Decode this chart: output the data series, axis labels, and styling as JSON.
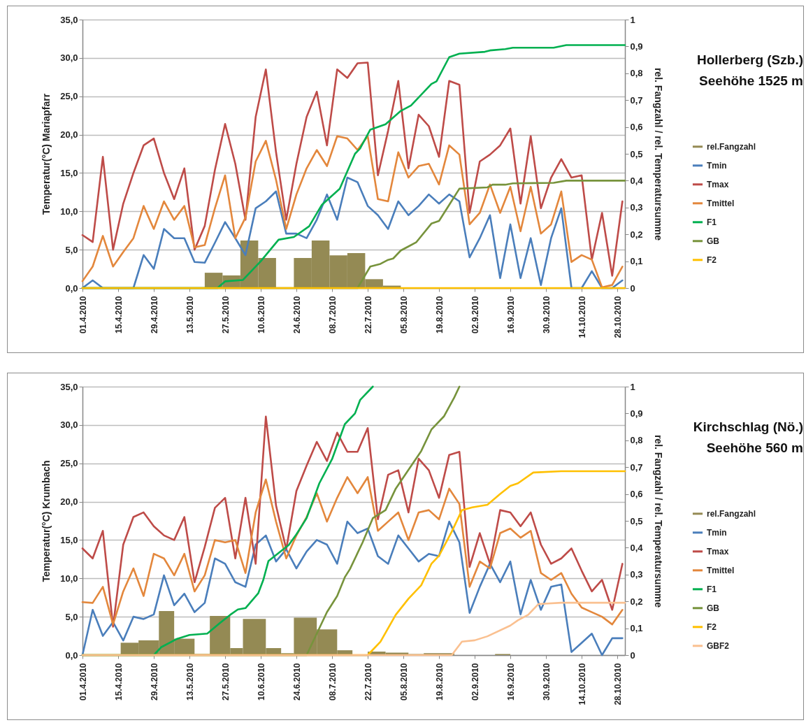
{
  "chart_data": [
    {
      "type": "line",
      "annotations": [
        "Hollerberg (Szb.)",
        "Seehöhe 1525 m"
      ],
      "ylabel": "Temperatur(°C)   Mariapfarr",
      "y2label": "rel. Fangzahl  /  rel. Temperatursumme",
      "grid": "y",
      "legend": "right",
      "y2ticks": [
        {
          "value": 0,
          "label": "0"
        },
        {
          "value": 0.1,
          "label": "0,1"
        },
        {
          "value": 0.2,
          "label": "0,2"
        },
        {
          "value": 0.3,
          "label": "0,3"
        },
        {
          "value": 0.4,
          "label": "0,4"
        },
        {
          "value": 0.5,
          "label": "0,5"
        },
        {
          "value": 0.6,
          "label": "0,6"
        },
        {
          "value": 0.7,
          "label": "0,7"
        },
        {
          "value": 0.8,
          "label": "0,8"
        },
        {
          "value": 0.9,
          "label": "0,9"
        },
        {
          "value": 1,
          "label": "1"
        }
      ],
      "xlim": [
        "2010-04-01",
        "2010-10-31"
      ],
      "xticks": [
        {
          "value": "2010-04-01",
          "label": "01.4.2010"
        },
        {
          "value": "2010-04-15",
          "label": "15.4.2010"
        },
        {
          "value": "2010-04-29",
          "label": "29.4.2010"
        },
        {
          "value": "2010-05-13",
          "label": "13.5.2010"
        },
        {
          "value": "2010-05-27",
          "label": "27.5.2010"
        },
        {
          "value": "2010-06-10",
          "label": "10.6.2010"
        },
        {
          "value": "2010-06-24",
          "label": "24.6.2010"
        },
        {
          "value": "2010-07-08",
          "label": "08.7.2010"
        },
        {
          "value": "2010-07-22",
          "label": "22.7.2010"
        },
        {
          "value": "2010-08-05",
          "label": "05.8.2010"
        },
        {
          "value": "2010-08-19",
          "label": "19.8.2010"
        },
        {
          "value": "2010-09-02",
          "label": "02.9.2010"
        },
        {
          "value": "2010-09-16",
          "label": "16.9.2010"
        },
        {
          "value": "2010-09-30",
          "label": "30.9.2010"
        },
        {
          "value": "2010-10-14",
          "label": "14.10.2010"
        },
        {
          "value": "2010-10-28",
          "label": "28.10.2010"
        }
      ],
      "ylim": [
        0,
        35
      ],
      "yticks": [
        {
          "value": 0,
          "label": "0,0"
        },
        {
          "value": 5,
          "label": "5,0"
        },
        {
          "value": 10,
          "label": "10,0"
        },
        {
          "value": 15,
          "label": "15,0"
        },
        {
          "value": 20,
          "label": "20,0"
        },
        {
          "value": 25,
          "label": "25,0"
        },
        {
          "value": 30,
          "label": "30,0"
        },
        {
          "value": 35,
          "label": "35,0"
        }
      ],
      "y2lim": [
        0,
        1
      ],
      "x": [
        "2010-04-01",
        "2010-04-05",
        "2010-04-09",
        "2010-04-13",
        "2010-04-17",
        "2010-04-21",
        "2010-04-25",
        "2010-04-29",
        "2010-05-03",
        "2010-05-07",
        "2010-05-11",
        "2010-05-15",
        "2010-05-19",
        "2010-05-23",
        "2010-05-27",
        "2010-05-31",
        "2010-06-04",
        "2010-06-08",
        "2010-06-12",
        "2010-06-16",
        "2010-06-20",
        "2010-06-24",
        "2010-06-28",
        "2010-07-02",
        "2010-07-06",
        "2010-07-10",
        "2010-07-14",
        "2010-07-18",
        "2010-07-22",
        "2010-07-26",
        "2010-07-30",
        "2010-08-03",
        "2010-08-07",
        "2010-08-11",
        "2010-08-15",
        "2010-08-19",
        "2010-08-23",
        "2010-08-27",
        "2010-08-31",
        "2010-09-04",
        "2010-09-08",
        "2010-09-12",
        "2010-09-16",
        "2010-09-20",
        "2010-09-24",
        "2010-09-28",
        "2010-10-02",
        "2010-10-06",
        "2010-10-10",
        "2010-10-14",
        "2010-10-18",
        "2010-10-22",
        "2010-10-26",
        "2010-10-30"
      ],
      "series": [
        {
          "name": "rel.Fangzahl",
          "type": "histogram",
          "axis": "y2",
          "color": "#948a54",
          "bins": [
            "2010-05-19",
            "2010-05-26",
            "2010-06-02",
            "2010-06-09",
            "2010-06-16",
            "2010-06-23",
            "2010-06-30",
            "2010-07-07",
            "2010-07-14",
            "2010-07-21",
            "2010-07-28",
            "2010-08-04"
          ],
          "values": [
            0.057,
            0.047,
            0.177,
            0.112,
            0,
            0.112,
            0.177,
            0.122,
            0.13,
            0.033,
            0.009
          ]
        },
        {
          "name": "Tmin",
          "color": "#4a7ebb",
          "values": [
            0,
            1,
            0,
            0,
            0,
            0,
            4.3,
            2.5,
            7.7,
            6.5,
            6.5,
            3.4,
            3.3,
            5.9,
            8.6,
            6.5,
            4.3,
            10.4,
            11.3,
            12.6,
            7.1,
            7.1,
            6.5,
            8.9,
            12.2,
            8.9,
            14.4,
            13.8,
            10.7,
            9.5,
            7.7,
            11.3,
            9.5,
            10.7,
            12.2,
            11,
            12.2,
            11.3,
            4,
            6.5,
            9.5,
            1.3,
            8.3,
            1.3,
            6.5,
            0.4,
            6.5,
            10.4,
            0,
            0,
            2.2,
            0,
            0,
            1
          ]
        },
        {
          "name": "Tmax",
          "color": "#be4b48",
          "values": [
            6.9,
            6,
            17.1,
            5,
            11,
            15,
            18.6,
            19.5,
            15,
            11.6,
            15.6,
            5,
            8.1,
            15.4,
            21.4,
            16.2,
            8.9,
            22.3,
            28.5,
            17.7,
            8.9,
            16.2,
            22.3,
            25.6,
            18.6,
            28.5,
            27.4,
            29.3,
            29.4,
            14.7,
            20.5,
            27,
            15.6,
            22.6,
            21.1,
            17.1,
            27,
            26.5,
            9.8,
            16.5,
            17.4,
            18.6,
            20.8,
            11,
            19.8,
            10.4,
            14.4,
            16.8,
            14.4,
            14.7,
            3.7,
            9.8,
            1.6,
            11.3
          ]
        },
        {
          "name": "Tmittel",
          "color": "#e3873c",
          "values": [
            0.9,
            2.8,
            6.8,
            2.8,
            4.7,
            6.5,
            10.7,
            7.7,
            11.3,
            8.9,
            10.7,
            5.3,
            5.6,
            10.4,
            14.7,
            6.5,
            9.2,
            16.5,
            19.2,
            14.1,
            7.7,
            12.2,
            15.6,
            18,
            15.9,
            19.8,
            19.5,
            18,
            19.8,
            11.6,
            11.3,
            17.7,
            14.4,
            15.9,
            16.2,
            13.5,
            18.6,
            17.4,
            8.3,
            9.8,
            13.5,
            9.8,
            13.2,
            7.4,
            13.2,
            7.1,
            8.3,
            12.6,
            3.4,
            4.3,
            3.7,
            0.1,
            0.4,
            2.8
          ]
        },
        {
          "name": "F1",
          "axis": "y2",
          "color": "#00b050",
          "x": [
            "2010-04-01",
            "2010-05-24",
            "2010-05-27",
            "2010-06-03",
            "2010-06-10",
            "2010-06-17",
            "2010-06-23",
            "2010-06-29",
            "2010-07-04",
            "2010-07-11",
            "2010-07-17",
            "2010-07-19",
            "2010-07-23",
            "2010-07-29",
            "2010-08-04",
            "2010-08-08",
            "2010-08-16",
            "2010-08-18",
            "2010-08-23",
            "2010-08-27",
            "2010-09-06",
            "2010-09-08",
            "2010-09-14",
            "2010-09-17",
            "2010-10-03",
            "2010-10-08",
            "2010-10-31"
          ],
          "values": [
            0,
            0,
            0.025,
            0.03,
            0.1,
            0.18,
            0.19,
            0.23,
            0.31,
            0.37,
            0.5,
            0.52,
            0.59,
            0.61,
            0.66,
            0.68,
            0.76,
            0.77,
            0.86,
            0.873,
            0.88,
            0.885,
            0.89,
            0.895,
            0.895,
            0.905,
            0.905
          ]
        },
        {
          "name": "GB",
          "axis": "y2",
          "color": "#77933c",
          "x": [
            "2010-04-01",
            "2010-07-18",
            "2010-07-23",
            "2010-07-27",
            "2010-07-30",
            "2010-08-01",
            "2010-08-04",
            "2010-08-07",
            "2010-08-10",
            "2010-08-16",
            "2010-08-19",
            "2010-08-23",
            "2010-08-27",
            "2010-09-07",
            "2010-09-09",
            "2010-09-14",
            "2010-09-17",
            "2010-10-03",
            "2010-10-08",
            "2010-10-31"
          ],
          "values": [
            0,
            0,
            0.08,
            0.09,
            0.105,
            0.11,
            0.14,
            0.155,
            0.17,
            0.24,
            0.25,
            0.31,
            0.37,
            0.375,
            0.385,
            0.385,
            0.39,
            0.392,
            0.4,
            0.4
          ]
        },
        {
          "name": "F2",
          "axis": "y2",
          "color": "#ffc000",
          "x": [
            "2010-04-01",
            "2010-10-31"
          ],
          "values": [
            0,
            0
          ]
        }
      ]
    },
    {
      "type": "line",
      "annotations": [
        "Kirchschlag (Nö.)",
        "Seehöhe 560 m"
      ],
      "ylabel": "Temperatur(°C)                    Krumbach",
      "y2label": "rel. Fangzahl  /  rel. Temperatursumme",
      "grid": "y",
      "legend": "right",
      "y2ticks": [
        {
          "value": 0,
          "label": "0"
        },
        {
          "value": 0.1,
          "label": "0,1"
        },
        {
          "value": 0.2,
          "label": "0,2"
        },
        {
          "value": 0.3,
          "label": "0,3"
        },
        {
          "value": 0.4,
          "label": "0,4"
        },
        {
          "value": 0.5,
          "label": "0,5"
        },
        {
          "value": 0.6,
          "label": "0,6"
        },
        {
          "value": 0.7,
          "label": "0,7"
        },
        {
          "value": 0.8,
          "label": "0,8"
        },
        {
          "value": 0.9,
          "label": "0,9"
        },
        {
          "value": 1,
          "label": "1"
        }
      ],
      "xlim": [
        "2010-04-01",
        "2010-10-31"
      ],
      "xticks": [
        {
          "value": "2010-04-01",
          "label": "01.4.2010"
        },
        {
          "value": "2010-04-15",
          "label": "15.4.2010"
        },
        {
          "value": "2010-04-29",
          "label": "29.4.2010"
        },
        {
          "value": "2010-05-13",
          "label": "13.5.2010"
        },
        {
          "value": "2010-05-27",
          "label": "27.5.2010"
        },
        {
          "value": "2010-06-10",
          "label": "10.6.2010"
        },
        {
          "value": "2010-06-24",
          "label": "24.6.2010"
        },
        {
          "value": "2010-07-08",
          "label": "08.7.2010"
        },
        {
          "value": "2010-07-22",
          "label": "22.7.2010"
        },
        {
          "value": "2010-08-05",
          "label": "05.8.2010"
        },
        {
          "value": "2010-08-19",
          "label": "19.8.2010"
        },
        {
          "value": "2010-09-02",
          "label": "02.9.2010"
        },
        {
          "value": "2010-09-16",
          "label": "16.9.2010"
        },
        {
          "value": "2010-09-30",
          "label": "30.9.2010"
        },
        {
          "value": "2010-10-14",
          "label": "14.10.2010"
        },
        {
          "value": "2010-10-28",
          "label": "28.10.2010"
        }
      ],
      "ylim": [
        0,
        35
      ],
      "yticks": [
        {
          "value": 0,
          "label": "0,0"
        },
        {
          "value": 5,
          "label": "5,0"
        },
        {
          "value": 10,
          "label": "10,0"
        },
        {
          "value": 15,
          "label": "15,0"
        },
        {
          "value": 20,
          "label": "20,0"
        },
        {
          "value": 25,
          "label": "25,0"
        },
        {
          "value": 30,
          "label": "30,0"
        },
        {
          "value": 35,
          "label": "35,0"
        }
      ],
      "y2lim": [
        0,
        1
      ],
      "x": [
        "2010-04-01",
        "2010-04-05",
        "2010-04-09",
        "2010-04-13",
        "2010-04-17",
        "2010-04-21",
        "2010-04-25",
        "2010-04-29",
        "2010-05-03",
        "2010-05-07",
        "2010-05-11",
        "2010-05-15",
        "2010-05-19",
        "2010-05-23",
        "2010-05-27",
        "2010-05-31",
        "2010-06-04",
        "2010-06-08",
        "2010-06-12",
        "2010-06-16",
        "2010-06-20",
        "2010-06-24",
        "2010-06-28",
        "2010-07-02",
        "2010-07-06",
        "2010-07-10",
        "2010-07-14",
        "2010-07-18",
        "2010-07-22",
        "2010-07-26",
        "2010-07-30",
        "2010-08-03",
        "2010-08-07",
        "2010-08-11",
        "2010-08-15",
        "2010-08-19",
        "2010-08-23",
        "2010-08-27",
        "2010-08-31",
        "2010-09-04",
        "2010-09-08",
        "2010-09-12",
        "2010-09-16",
        "2010-09-20",
        "2010-09-24",
        "2010-09-28",
        "2010-10-02",
        "2010-10-06",
        "2010-10-10",
        "2010-10-14",
        "2010-10-18",
        "2010-10-22",
        "2010-10-26",
        "2010-10-30"
      ],
      "series": [
        {
          "name": "rel.Fangzahl",
          "type": "histogram",
          "axis": "y2",
          "color": "#948a54",
          "bins": [
            "2010-04-16",
            "2010-04-23",
            "2010-05-01",
            "2010-05-07",
            "2010-05-15",
            "2010-05-21",
            "2010-05-29",
            "2010-06-03",
            "2010-06-12",
            "2010-06-18",
            "2010-06-23",
            "2010-07-02",
            "2010-07-10",
            "2010-07-16",
            "2010-07-22",
            "2010-07-29",
            "2010-08-07",
            "2010-08-13",
            "2010-08-25",
            "2010-09-10",
            "2010-09-16"
          ],
          "values": [
            0.046,
            0.055,
            0.164,
            0.061,
            0.004,
            0.146,
            0.026,
            0.135,
            0.026,
            0.007,
            0.139,
            0.096,
            0.018,
            0,
            0.013,
            0.009,
            0.004,
            0.007,
            0,
            0.004
          ]
        },
        {
          "name": "Tmin",
          "color": "#4a7ebb",
          "values": [
            0,
            5.9,
            2.5,
            4.3,
            1.9,
            5,
            4.7,
            5.3,
            10.4,
            6.5,
            8,
            5.6,
            6.8,
            12.6,
            11.9,
            9.5,
            8.9,
            14.4,
            15.6,
            12.2,
            13.8,
            11.3,
            13.5,
            15,
            14.4,
            11.9,
            17.4,
            15.9,
            16.5,
            12.9,
            11.9,
            15.6,
            13.9,
            12.2,
            13.2,
            12.9,
            17.4,
            14.7,
            5.5,
            8.9,
            11.9,
            9.5,
            12.2,
            5.3,
            9.8,
            5.9,
            8.9,
            9.2,
            0.4,
            1.6,
            2.8,
            0,
            2.2,
            2.2
          ]
        },
        {
          "name": "Tmax",
          "color": "#be4b48",
          "values": [
            13.9,
            12.6,
            16.2,
            3.7,
            14.4,
            18,
            18.6,
            16.8,
            15.6,
            15,
            18,
            9.5,
            14.1,
            19.2,
            20.5,
            12.6,
            20.5,
            11.9,
            31.1,
            19.5,
            13.8,
            21.4,
            24.7,
            27.8,
            25.3,
            29,
            26.5,
            26.5,
            29.6,
            17.7,
            23.5,
            24.1,
            18.6,
            25.6,
            24.1,
            20.5,
            26.1,
            26.5,
            11.5,
            15.9,
            11.9,
            18.9,
            18.6,
            16.8,
            18.6,
            14.4,
            11.9,
            12.6,
            13.9,
            11,
            8.3,
            9.8,
            5.9,
            11.9
          ]
        },
        {
          "name": "Tmittel",
          "color": "#e3873c",
          "values": [
            6.9,
            6.8,
            8.9,
            4,
            8.3,
            11.3,
            7.7,
            13.2,
            12.6,
            10.4,
            13.2,
            8.3,
            10.4,
            15,
            14.7,
            15,
            10.7,
            18.6,
            22.9,
            17.4,
            12.6,
            15.6,
            18,
            21.1,
            17.4,
            20.5,
            23.2,
            21.1,
            23.2,
            16.2,
            17.4,
            18.6,
            15,
            18.6,
            18.9,
            17.7,
            21.7,
            19.7,
            8.9,
            12.2,
            11.3,
            15.9,
            16.5,
            15.3,
            16.2,
            10.7,
            9.8,
            10.7,
            8,
            6.2,
            5.6,
            5,
            4,
            5.9
          ]
        },
        {
          "name": "F1",
          "axis": "y2",
          "color": "#00b050",
          "x": [
            "2010-04-01",
            "2010-04-29",
            "2010-05-02",
            "2010-05-06",
            "2010-05-08",
            "2010-05-13",
            "2010-05-20",
            "2010-05-25",
            "2010-05-29",
            "2010-06-01",
            "2010-06-04",
            "2010-06-09",
            "2010-06-11",
            "2010-06-13",
            "2010-06-17",
            "2010-06-21",
            "2010-06-24",
            "2010-06-28",
            "2010-07-03",
            "2010-07-08",
            "2010-07-13",
            "2010-07-17",
            "2010-07-19",
            "2010-07-24"
          ],
          "values": [
            0,
            0,
            0.03,
            0.05,
            0.06,
            0.075,
            0.08,
            0.12,
            0.15,
            0.17,
            0.175,
            0.23,
            0.28,
            0.35,
            0.38,
            0.41,
            0.45,
            0.51,
            0.64,
            0.73,
            0.86,
            0.9,
            0.95,
            1
          ]
        },
        {
          "name": "GB",
          "axis": "y2",
          "color": "#77933c",
          "x": [
            "2010-04-01",
            "2010-06-28",
            "2010-07-06",
            "2010-07-10",
            "2010-07-13",
            "2010-07-15",
            "2010-07-20",
            "2010-07-24",
            "2010-07-29",
            "2010-08-02",
            "2010-08-07",
            "2010-08-12",
            "2010-08-16",
            "2010-08-21",
            "2010-08-25",
            "2010-08-27"
          ],
          "values": [
            0,
            0,
            0.16,
            0.22,
            0.29,
            0.32,
            0.42,
            0.51,
            0.54,
            0.62,
            0.69,
            0.76,
            0.84,
            0.89,
            0.96,
            1
          ]
        },
        {
          "name": "F2",
          "axis": "y2",
          "color": "#ffc000",
          "x": [
            "2010-04-01",
            "2010-07-22",
            "2010-07-27",
            "2010-08-02",
            "2010-08-07",
            "2010-08-12",
            "2010-08-16",
            "2010-08-19",
            "2010-08-24",
            "2010-08-28",
            "2010-09-01",
            "2010-09-07",
            "2010-09-12",
            "2010-09-16",
            "2010-09-19",
            "2010-09-25",
            "2010-10-06",
            "2010-10-31"
          ],
          "values": [
            0,
            0,
            0.05,
            0.15,
            0.21,
            0.26,
            0.34,
            0.37,
            0.46,
            0.54,
            0.55,
            0.56,
            0.6,
            0.63,
            0.64,
            0.68,
            0.685,
            0.685
          ]
        },
        {
          "name": "GBF2",
          "axis": "y2",
          "color": "#fac090",
          "x": [
            "2010-04-01",
            "2010-08-24",
            "2010-08-28",
            "2010-09-02",
            "2010-09-07",
            "2010-09-16",
            "2010-09-19",
            "2010-09-23",
            "2010-09-27",
            "2010-10-06",
            "2010-10-31"
          ],
          "values": [
            0,
            0,
            0.05,
            0.055,
            0.07,
            0.11,
            0.13,
            0.15,
            0.19,
            0.195,
            0.195
          ]
        }
      ]
    }
  ]
}
